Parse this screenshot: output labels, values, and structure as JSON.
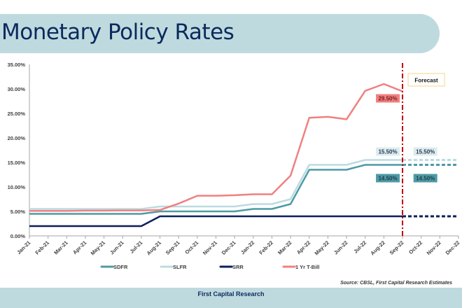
{
  "header": {
    "title": "Monetary Policy Rates"
  },
  "footer": {
    "brand": "First Capital Research",
    "source": "Source: CBSL, First Capital Research Estimates"
  },
  "chart_data": {
    "type": "line",
    "title": "Monetary Policy Rates",
    "xlabel": "",
    "ylabel": "",
    "ylim": [
      0,
      35
    ],
    "yticks": [
      "0.00%",
      "5.00%",
      "10.00%",
      "15.00%",
      "20.00%",
      "25.00%",
      "30.00%",
      "35.00%"
    ],
    "ytick_values": [
      0,
      5,
      10,
      15,
      20,
      25,
      30,
      35
    ],
    "categories": [
      "Jan-21",
      "Feb-21",
      "Mar-21",
      "Apr-21",
      "May-21",
      "Jun-21",
      "Jul-21",
      "Aug-21",
      "Sep-21",
      "Oct-21",
      "Nov-21",
      "Dec-21",
      "Jan-22",
      "Feb-22",
      "Mar-22",
      "Apr-22",
      "May-22",
      "Jun-22",
      "Jul-22",
      "Aug-22",
      "Sep-22",
      "Oct-22",
      "Nov-22",
      "Dec-22"
    ],
    "grid": false,
    "legend_position": "bottom",
    "forecast_marker": {
      "category": "Sep-22",
      "label": "Forecast",
      "color": "#c00000"
    },
    "series": [
      {
        "name": "SDFR",
        "color": "#4e9aa5",
        "values": [
          4.5,
          4.5,
          4.5,
          4.5,
          4.5,
          4.5,
          4.5,
          5.0,
          5.0,
          5.0,
          5.0,
          5.0,
          5.5,
          5.5,
          6.5,
          13.5,
          13.5,
          13.5,
          14.5,
          14.5,
          14.5,
          null,
          null,
          null
        ],
        "forecast": [
          null,
          null,
          null,
          null,
          null,
          null,
          null,
          null,
          null,
          null,
          null,
          null,
          null,
          null,
          null,
          null,
          null,
          null,
          null,
          null,
          14.5,
          14.5,
          14.5,
          14.5
        ],
        "labels": [
          {
            "category": "Sep-22",
            "text": "14.50%",
            "side": "left"
          },
          {
            "category": "Oct-22",
            "text": "14.50%",
            "side": "right"
          }
        ]
      },
      {
        "name": "SLFR",
        "color": "#bcdbe0",
        "values": [
          5.5,
          5.5,
          5.5,
          5.5,
          5.5,
          5.5,
          5.5,
          6.0,
          6.0,
          6.0,
          6.0,
          6.0,
          6.5,
          6.5,
          7.5,
          14.5,
          14.5,
          14.5,
          15.5,
          15.5,
          15.5,
          null,
          null,
          null
        ],
        "forecast": [
          null,
          null,
          null,
          null,
          null,
          null,
          null,
          null,
          null,
          null,
          null,
          null,
          null,
          null,
          null,
          null,
          null,
          null,
          null,
          null,
          15.5,
          15.5,
          15.5,
          15.5
        ],
        "labels": [
          {
            "category": "Sep-22",
            "text": "15.50%",
            "side": "left"
          },
          {
            "category": "Oct-22",
            "text": "15.50%",
            "side": "right"
          }
        ]
      },
      {
        "name": "SRR",
        "color": "#0d1f5c",
        "values": [
          2.0,
          2.0,
          2.0,
          2.0,
          2.0,
          2.0,
          2.0,
          4.0,
          4.0,
          4.0,
          4.0,
          4.0,
          4.0,
          4.0,
          4.0,
          4.0,
          4.0,
          4.0,
          4.0,
          4.0,
          4.0,
          null,
          null,
          null
        ],
        "forecast": [
          null,
          null,
          null,
          null,
          null,
          null,
          null,
          null,
          null,
          null,
          null,
          null,
          null,
          null,
          null,
          null,
          null,
          null,
          null,
          null,
          4.0,
          4.0,
          4.0,
          4.0
        ],
        "labels": []
      },
      {
        "name": "1 Yr T-Bill",
        "color": "#f08080",
        "values": [
          5.1,
          5.1,
          5.1,
          5.15,
          5.15,
          5.2,
          5.2,
          5.3,
          6.6,
          8.2,
          8.2,
          8.3,
          8.5,
          8.5,
          12.3,
          24.1,
          24.3,
          23.8,
          29.6,
          31.0,
          29.5,
          null,
          null,
          null
        ],
        "forecast": [],
        "labels": [
          {
            "category": "Sep-22",
            "text": "29.50%",
            "side": "left"
          }
        ]
      }
    ]
  }
}
